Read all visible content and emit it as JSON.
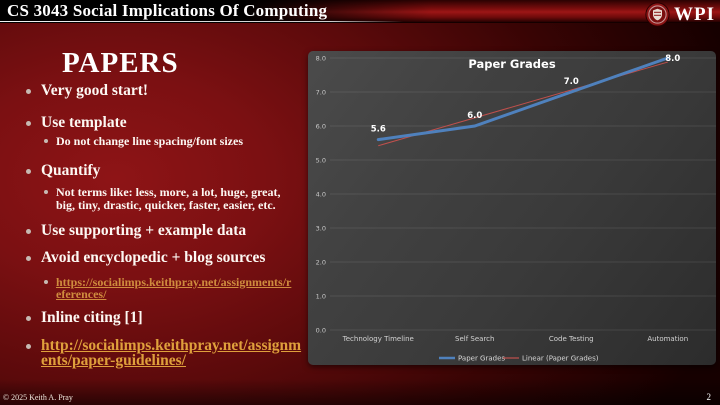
{
  "header": {
    "course_title": "CS 3043 Social Implications Of Computing",
    "logo_text": "WPI"
  },
  "slide": {
    "title": "PAPERS",
    "bullets": [
      {
        "level": 1,
        "text": "Very good start!"
      },
      {
        "level": 1,
        "text": "Use template"
      },
      {
        "level": 2,
        "text": "Do not change line spacing/font sizes"
      },
      {
        "level": 1,
        "text": "Quantify"
      },
      {
        "level": 2,
        "text": "Not terms like: less, more, a lot, huge, great, big, tiny, drastic, quicker, faster, easier, etc."
      },
      {
        "level": 1,
        "text": "Use supporting + example data"
      },
      {
        "level": 1,
        "text": "Avoid encyclopedic + blog sources"
      },
      {
        "level": 2,
        "text": "https://socialimps.keithpray.net/assignments/references/",
        "link": true
      },
      {
        "level": 1,
        "text": "Inline citing [1]"
      },
      {
        "level": 1,
        "text": "http://socialimps.keithpray.net/assignments/paper-guidelines/",
        "link": true
      }
    ]
  },
  "footer": {
    "copyright": "© 2025 Keith A. Pray",
    "page_number": "2"
  },
  "chart_data": {
    "type": "line",
    "title": "Paper Grades",
    "categories": [
      "Technology Timeline",
      "Self Search",
      "Code Testing",
      "Automation"
    ],
    "series": [
      {
        "name": "Paper Grades",
        "values": [
          5.6,
          6.0,
          7.0,
          8.0
        ],
        "labels": [
          "5.6",
          "6.0",
          "7.0",
          "8.0"
        ]
      },
      {
        "name": "Linear (Paper Grades)",
        "values": [
          5.42,
          6.24,
          7.06,
          7.88
        ]
      }
    ],
    "ylim": [
      0,
      8
    ],
    "ytick_labels": [
      "0.0",
      "1.0",
      "2.0",
      "3.0",
      "4.0",
      "5.0",
      "6.0",
      "7.0",
      "8.0"
    ],
    "grid": true,
    "legend_position": "bottom",
    "line_color": "#4f81bd",
    "trend_color": "#c0504d",
    "panel_background": "#3d3d3d",
    "text_color": "#ffffff"
  }
}
